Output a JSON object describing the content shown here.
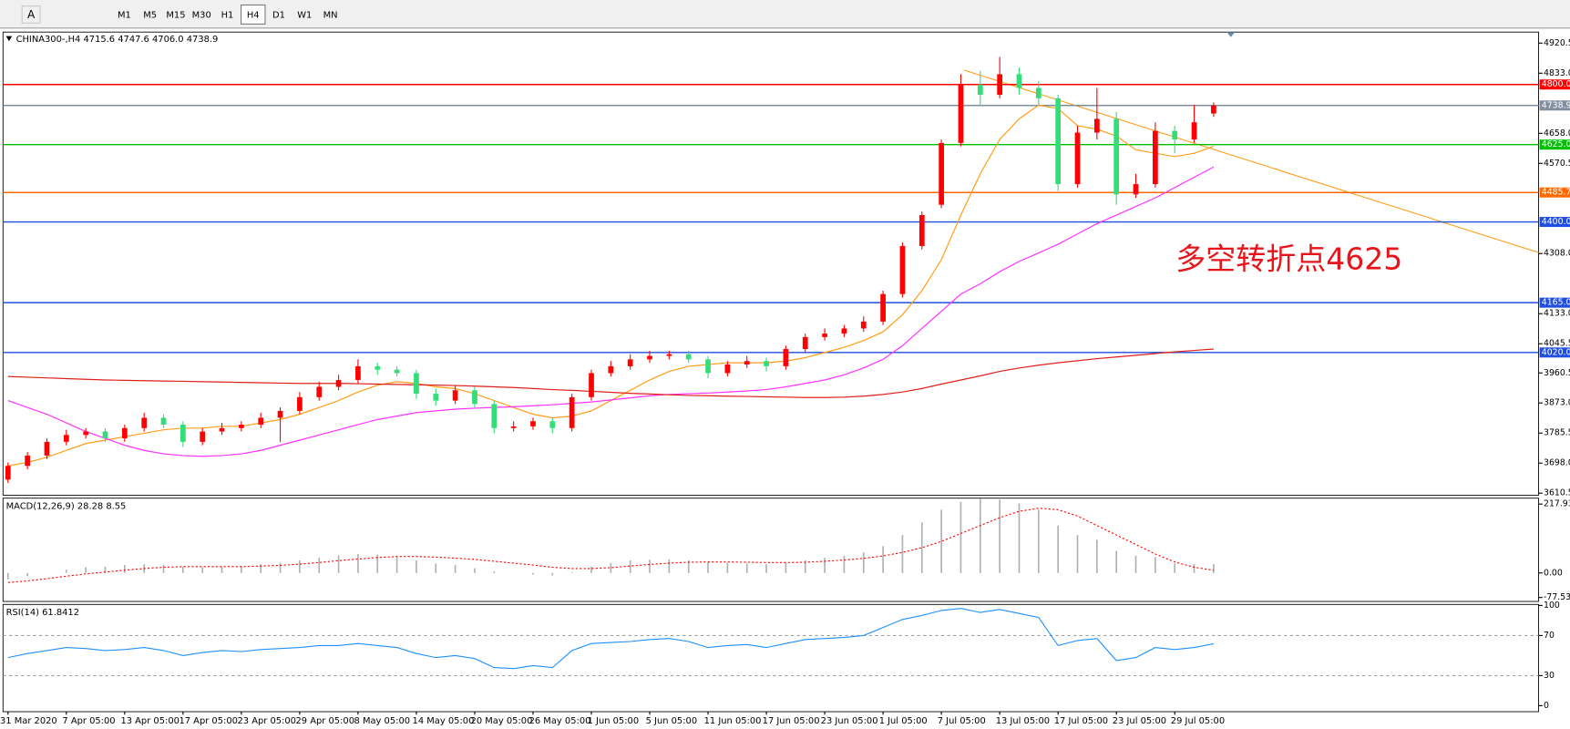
{
  "toolbar": {
    "tools": [
      "A"
    ],
    "buttons": [
      "M1",
      "M5",
      "M15",
      "M30",
      "H1",
      "H4",
      "D1",
      "W1",
      "MN"
    ],
    "active": "H4"
  },
  "chart_data": [
    {
      "type": "candlestick",
      "title": "CHINA300-,H4  4715.6 4747.6 4706.0 4738.9",
      "annotation": "多空转折点4625",
      "up_color": "#ff0000",
      "down_color": "#33dd77",
      "categories": [
        "31 Mar 2020",
        null,
        null,
        "7 Apr 05:00",
        null,
        null,
        "13 Apr 05:00",
        null,
        null,
        "17 Apr 05:00",
        null,
        null,
        "23 Apr 05:00",
        null,
        null,
        "29 Apr 05:00",
        null,
        null,
        "8 May 05:00",
        null,
        null,
        "14 May 05:00",
        null,
        null,
        "20 May 05:00",
        null,
        null,
        "26 May 05:00",
        null,
        null,
        "1 Jun 05:00",
        null,
        null,
        "5 Jun 05:00",
        null,
        null,
        "11 Jun 05:00",
        null,
        null,
        "17 Jun 05:00",
        null,
        null,
        "23 Jun 05:00",
        null,
        null,
        "1 Jul 05:00",
        null,
        null,
        "7 Jul 05:00",
        null,
        null,
        "13 Jul 05:00",
        null,
        null,
        "17 Jul 05:00",
        null,
        null,
        "23 Jul 05:00",
        null,
        null,
        "29 Jul 05:00",
        null,
        null
      ],
      "open": [
        3650,
        3690,
        3720,
        3760,
        3780,
        3790,
        3770,
        3800,
        3830,
        3810,
        3760,
        3790,
        3800,
        3810,
        3830,
        3850,
        3890,
        3920,
        3940,
        3980,
        3970,
        3960,
        3900,
        3880,
        3910,
        3870,
        3800,
        3805,
        3820,
        3800,
        3890,
        3960,
        3980,
        4000,
        4010,
        4015,
        4000,
        3960,
        3985,
        3995,
        3980,
        4030,
        4065,
        4075,
        4090,
        4110,
        4190,
        4330,
        4450,
        4630,
        4800,
        4770,
        4830,
        4790,
        4760,
        4510,
        4660,
        4700,
        4480,
        4510,
        4665,
        4640,
        4715.6
      ],
      "high": [
        3700,
        3730,
        3770,
        3795,
        3800,
        3800,
        3810,
        3845,
        3840,
        3820,
        3800,
        3815,
        3820,
        3845,
        3860,
        3905,
        3935,
        3955,
        4000,
        3990,
        3980,
        3970,
        3915,
        3925,
        3920,
        3880,
        3820,
        3830,
        3830,
        3900,
        3970,
        3995,
        4015,
        4025,
        4025,
        4025,
        4010,
        3995,
        4010,
        4005,
        4040,
        4075,
        4090,
        4100,
        4125,
        4200,
        4340,
        4430,
        4640,
        4830,
        4840,
        4880,
        4850,
        4810,
        4770,
        4680,
        4790,
        4720,
        4540,
        4690,
        4680,
        4740,
        4747.6
      ],
      "low": [
        3640,
        3680,
        3710,
        3750,
        3770,
        3760,
        3760,
        3790,
        3800,
        3745,
        3750,
        3780,
        3790,
        3800,
        3760,
        3840,
        3880,
        3910,
        3930,
        3955,
        3950,
        3885,
        3865,
        3870,
        3860,
        3785,
        3790,
        3795,
        3785,
        3790,
        3880,
        3950,
        3970,
        3990,
        4000,
        3990,
        3945,
        3950,
        3975,
        3965,
        3970,
        4020,
        4055,
        4065,
        4080,
        4100,
        4180,
        4320,
        4440,
        4620,
        4740,
        4760,
        4770,
        4740,
        4490,
        4500,
        4640,
        4450,
        4470,
        4500,
        4600,
        4630,
        4706
      ],
      "close": [
        3690,
        3720,
        3760,
        3780,
        3790,
        3770,
        3800,
        3830,
        3810,
        3760,
        3790,
        3800,
        3810,
        3830,
        3850,
        3890,
        3920,
        3940,
        3980,
        3970,
        3960,
        3900,
        3880,
        3910,
        3870,
        3800,
        3805,
        3820,
        3800,
        3890,
        3960,
        3980,
        4000,
        4010,
        4015,
        4000,
        3960,
        3985,
        3995,
        3980,
        4030,
        4065,
        4075,
        4090,
        4110,
        4190,
        4330,
        4420,
        4630,
        4800,
        4770,
        4830,
        4790,
        4760,
        4510,
        4660,
        4700,
        4480,
        4510,
        4665,
        4640,
        4690,
        4738.9
      ],
      "series": [
        {
          "color": "#ff9e1a",
          "values": [
            3690,
            3700,
            3715,
            3735,
            3755,
            3765,
            3775,
            3785,
            3795,
            3800,
            3800,
            3805,
            3805,
            3815,
            3825,
            3840,
            3860,
            3880,
            3905,
            3925,
            3935,
            3930,
            3920,
            3915,
            3900,
            3880,
            3860,
            3840,
            3830,
            3835,
            3850,
            3880,
            3910,
            3940,
            3965,
            3980,
            3985,
            3990,
            3990,
            3990,
            3995,
            4005,
            4020,
            4035,
            4055,
            4080,
            4130,
            4200,
            4290,
            4420,
            4540,
            4640,
            4700,
            4740,
            4730,
            4680,
            4670,
            4650,
            4610,
            4600,
            4590,
            4600,
            4620
          ]
        },
        {
          "color": "#ff33ff",
          "values": [
            3880,
            3860,
            3840,
            3815,
            3790,
            3770,
            3750,
            3735,
            3725,
            3720,
            3718,
            3720,
            3725,
            3735,
            3750,
            3765,
            3780,
            3795,
            3810,
            3825,
            3835,
            3845,
            3850,
            3855,
            3858,
            3860,
            3862,
            3865,
            3868,
            3872,
            3876,
            3882,
            3888,
            3894,
            3898,
            3900,
            3902,
            3905,
            3908,
            3912,
            3920,
            3930,
            3940,
            3955,
            3975,
            4000,
            4040,
            4090,
            4140,
            4190,
            4220,
            4255,
            4285,
            4310,
            4335,
            4365,
            4395,
            4420,
            4445,
            4470,
            4500,
            4530,
            4560
          ]
        },
        {
          "color": "#e0201a",
          "values": [
            3950,
            3948,
            3946,
            3944,
            3942,
            3940,
            3939,
            3938,
            3937,
            3936,
            3935,
            3934,
            3933,
            3932,
            3931,
            3930,
            3930,
            3930,
            3929,
            3928,
            3927,
            3926,
            3925,
            3924,
            3922,
            3920,
            3918,
            3915,
            3912,
            3910,
            3907,
            3904,
            3901,
            3899,
            3897,
            3895,
            3894,
            3893,
            3892,
            3891,
            3890,
            3889,
            3889,
            3890,
            3893,
            3898,
            3905,
            3915,
            3928,
            3940,
            3952,
            3965,
            3975,
            3983,
            3990,
            3996,
            4002,
            4007,
            4012,
            4017,
            4022,
            4026,
            4030
          ]
        }
      ],
      "ylim": [
        3604.7,
        4952.6
      ],
      "yticks": [
        4920.5,
        {
          "value": 4833,
          "label": "4833.0"
        },
        {
          "value": 4658,
          "label": "4658.0"
        },
        4570.5,
        {
          "value": 4308,
          "label": "4308.0"
        },
        {
          "value": 4133,
          "label": "4133.0"
        },
        4045.5,
        3960.5,
        {
          "value": 3873,
          "label": "3873.0"
        },
        3785.5,
        {
          "value": 3698,
          "label": "3698.0"
        },
        3610.5
      ],
      "levels": [
        {
          "value": 4800,
          "label": "4800.0",
          "color": "#ff0000"
        },
        {
          "value": 4738.9,
          "label": "4738.9",
          "color": "#7f8f9f"
        },
        {
          "value": 4625,
          "label": "4625.0",
          "color": "#00c000"
        },
        {
          "value": 4485.7,
          "label": "4485.7",
          "color": "#ff6a00"
        },
        {
          "value": 4400,
          "label": "4400.0",
          "color": "#1f4ee0"
        },
        {
          "value": 4165,
          "label": "4165.0",
          "color": "#1f4ee0"
        },
        {
          "value": 4020,
          "label": "4020.0",
          "color": "#1f4ee0"
        }
      ]
    },
    {
      "type": "macd",
      "title": "MACD(12,26,9) 28.28 8.55",
      "series": [
        {
          "color": "#b0b0b0",
          "values": [
            -20,
            -10,
            0,
            10,
            18,
            20,
            25,
            28,
            26,
            20,
            18,
            20,
            22,
            28,
            32,
            40,
            48,
            55,
            60,
            58,
            52,
            40,
            30,
            25,
            15,
            5,
            0,
            -5,
            -8,
            2,
            20,
            32,
            40,
            42,
            43,
            40,
            35,
            32,
            30,
            28,
            32,
            40,
            48,
            55,
            65,
            85,
            120,
            160,
            200,
            225,
            235,
            232,
            220,
            200,
            150,
            120,
            105,
            70,
            55,
            50,
            30,
            28,
            28.28
          ]
        },
        {
          "color": "#ff0000",
          "values": [
            -30,
            -25,
            -18,
            -10,
            -3,
            3,
            9,
            14,
            18,
            20,
            20,
            20,
            20,
            22,
            24,
            28,
            33,
            39,
            44,
            49,
            52,
            52,
            50,
            47,
            43,
            37,
            31,
            25,
            18,
            14,
            14,
            17,
            22,
            27,
            31,
            34,
            35,
            35,
            34,
            33,
            33,
            34,
            37,
            41,
            46,
            54,
            65,
            80,
            100,
            125,
            150,
            175,
            195,
            205,
            200,
            180,
            150,
            120,
            90,
            60,
            35,
            18,
            8.55
          ]
        }
      ],
      "ylim": [
        -90,
        236.6
      ],
      "yticks": [
        217.93,
        {
          "value": 0,
          "label": "0.00"
        },
        -77.53
      ]
    },
    {
      "type": "line",
      "title": "RSI(14) 61.8412",
      "series": [
        {
          "color": "#1e90ff",
          "values": [
            48,
            52,
            55,
            58,
            57,
            55,
            56,
            58,
            55,
            50,
            53,
            55,
            54,
            56,
            57,
            58,
            60,
            60,
            62,
            60,
            58,
            52,
            48,
            50,
            47,
            38,
            37,
            40,
            38,
            55,
            62,
            63,
            64,
            66,
            67,
            64,
            58,
            60,
            61,
            58,
            62,
            66,
            67,
            68,
            70,
            78,
            86,
            90,
            95,
            97,
            93,
            96,
            92,
            88,
            60,
            65,
            67,
            45,
            48,
            58,
            56,
            58,
            61.8412
          ]
        }
      ],
      "levels": [
        70,
        30
      ],
      "ylim": [
        -6,
        101
      ],
      "yticks": [
        100,
        70,
        30,
        0
      ]
    }
  ]
}
